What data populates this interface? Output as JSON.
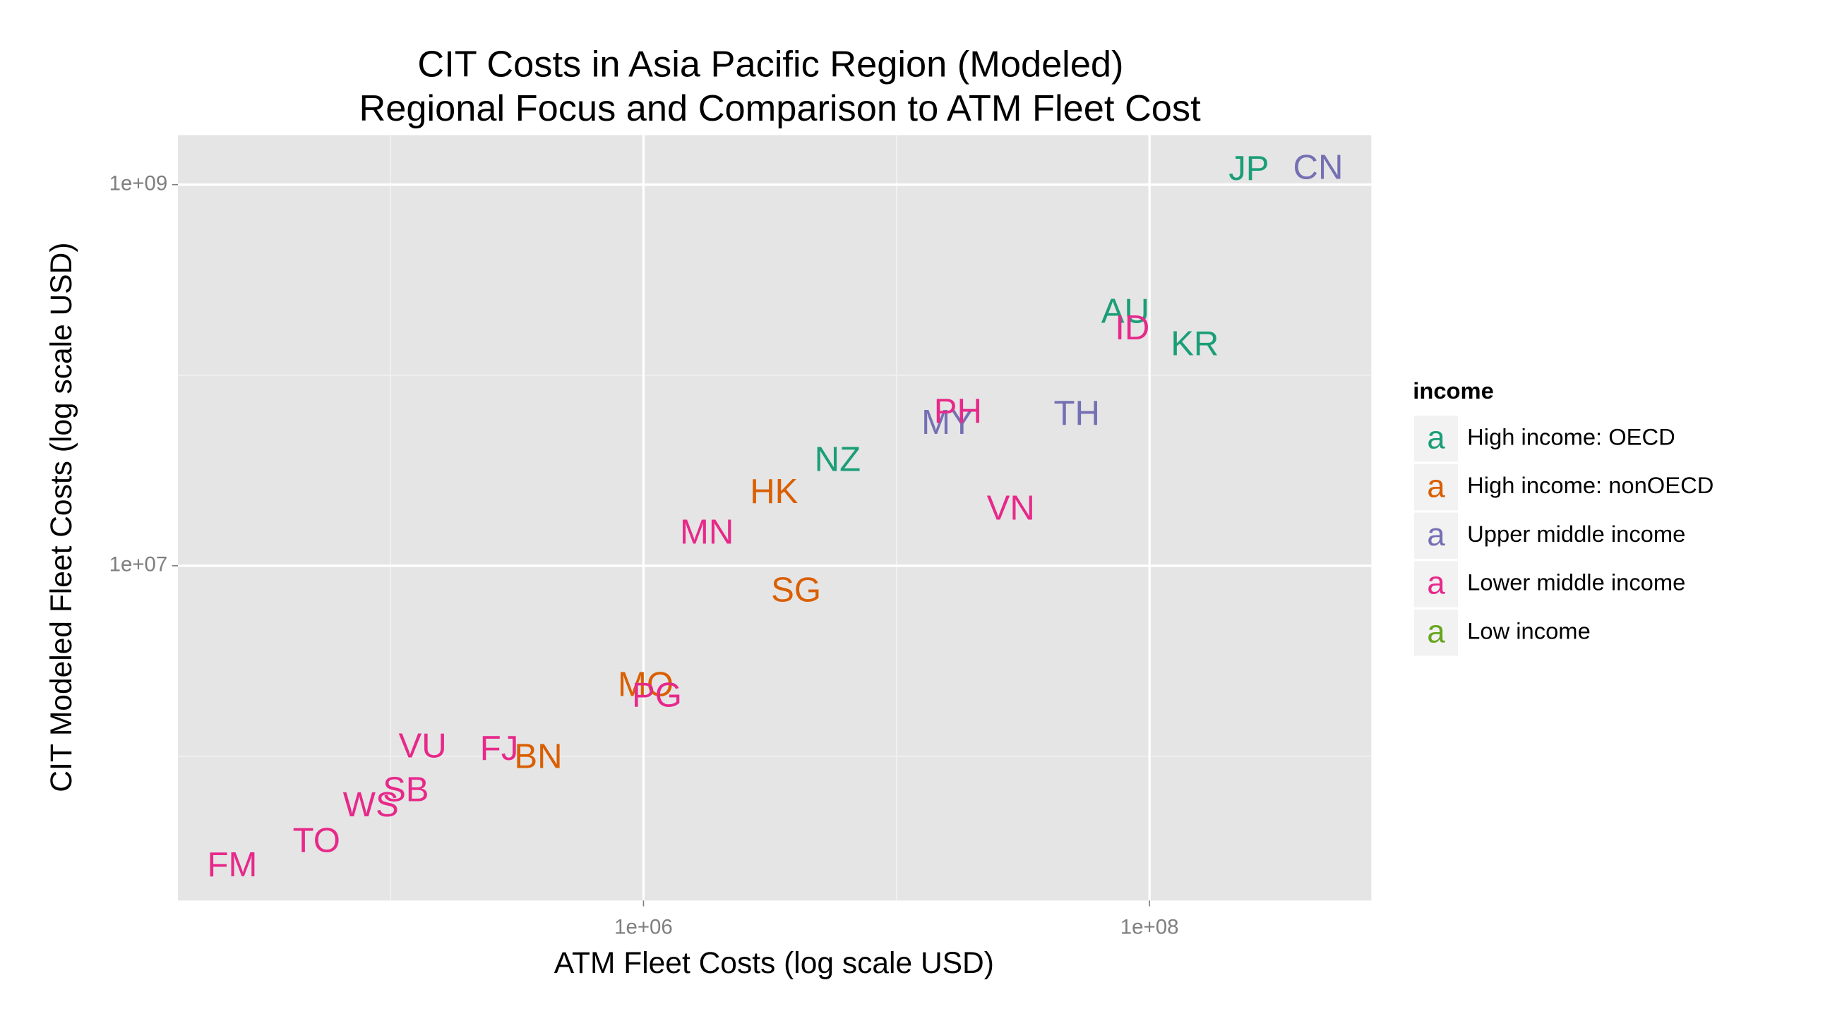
{
  "chart_data": {
    "type": "scatter",
    "title": "CIT Costs in Asia Pacific Region (Modeled)",
    "subtitle": "Regional Focus and Comparison to ATM Fleet Cost",
    "x_label": "ATM Fleet Costs (log scale USD)",
    "y_label": "CIT Modeled Fleet Costs (log scale USD)",
    "x_log": true,
    "y_log": true,
    "grid": true,
    "xlim": [
      14450,
      753000000
    ],
    "ylim": [
      175000,
      1820000000
    ],
    "xticks": [
      {
        "value": 1000000,
        "label": "1e+06"
      },
      {
        "value": 100000000,
        "label": "1e+08"
      }
    ],
    "yticks": [
      {
        "value": 10000000,
        "label": "1e+07"
      },
      {
        "value": 1000000000,
        "label": "1e+09"
      }
    ],
    "xminor": [
      100000,
      10000000
    ],
    "yminor": [
      1000000,
      100000000
    ],
    "legend_title": "income",
    "legend_glyph": "a",
    "legend_position": "right",
    "series": [
      {
        "name": "High income: OECD",
        "color": "#1b9e77",
        "labels": [
          "JP",
          "AU",
          "KR",
          "NZ"
        ],
        "x": [
          247000000,
          80200000,
          151000000,
          5850000
        ],
        "values": [
          1180000000,
          210000000,
          142000000,
          35100000
        ]
      },
      {
        "name": "High income: nonOECD",
        "color": "#d95f02",
        "labels": [
          "HK",
          "SG",
          "MO",
          "BN"
        ],
        "x": [
          3280000,
          4010000,
          1020000,
          384000
        ],
        "values": [
          23800000,
          7250000,
          2310000,
          970000
        ]
      },
      {
        "name": "Upper middle income",
        "color": "#7570b3",
        "labels": [
          "CN",
          "MY",
          "TH"
        ],
        "x": [
          464000000,
          15900000,
          51600000
        ],
        "values": [
          1200000000,
          54900000,
          61300000
        ]
      },
      {
        "name": "Lower middle income",
        "color": "#e7298a",
        "labels": [
          "ID",
          "PH",
          "VN",
          "MN",
          "PG",
          "VU",
          "FJ",
          "SB",
          "WS",
          "TO",
          "FM"
        ],
        "x": [
          85500000,
          17500000,
          28300000,
          1780000,
          1130000,
          134000,
          269000,
          115000,
          83600,
          51000,
          23700
        ],
        "values": [
          172000000,
          63000000,
          19500000,
          14600000,
          2040000,
          1100000,
          1070000,
          649000,
          541000,
          351000,
          262000
        ]
      },
      {
        "name": "Low income",
        "color": "#66a61e",
        "labels": [],
        "x": [],
        "values": []
      }
    ]
  }
}
